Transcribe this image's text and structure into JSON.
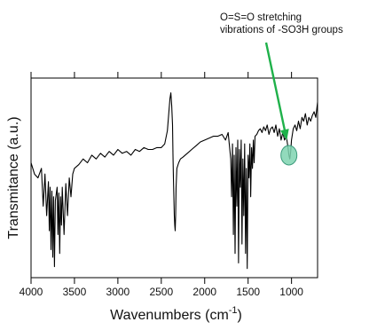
{
  "chart_data": {
    "type": "line",
    "title": "",
    "xlabel": "Wavenumbers (cm",
    "xlabel_unit_sup": "-1",
    "xlabel_close": ")",
    "ylabel": "Transmitance (a.u.)",
    "x_reversed": true,
    "xlim": [
      4000,
      700
    ],
    "ylim": [
      0,
      1
    ],
    "x_ticks": [
      4000,
      3500,
      3000,
      2500,
      2000,
      1500,
      1000
    ],
    "y_ticks_labeled": false,
    "grid": false,
    "series": [
      {
        "color": "#000000",
        "x": [
          4000,
          3960,
          3920,
          3880,
          3860,
          3840,
          3820,
          3800,
          3790,
          3780,
          3770,
          3760,
          3750,
          3740,
          3730,
          3720,
          3700,
          3690,
          3680,
          3670,
          3660,
          3650,
          3640,
          3620,
          3600,
          3580,
          3560,
          3540,
          3520,
          3500,
          3450,
          3400,
          3350,
          3300,
          3250,
          3200,
          3150,
          3100,
          3050,
          3000,
          2950,
          2900,
          2850,
          2800,
          2750,
          2700,
          2650,
          2600,
          2550,
          2500,
          2460,
          2430,
          2400,
          2390,
          2380,
          2370,
          2365,
          2360,
          2355,
          2350,
          2345,
          2340,
          2335,
          2330,
          2320,
          2300,
          2280,
          2250,
          2200,
          2150,
          2100,
          2050,
          2000,
          1950,
          1900,
          1850,
          1800,
          1760,
          1730,
          1700,
          1690,
          1680,
          1670,
          1660,
          1650,
          1640,
          1630,
          1620,
          1610,
          1600,
          1590,
          1580,
          1570,
          1560,
          1550,
          1540,
          1530,
          1520,
          1510,
          1500,
          1490,
          1480,
          1470,
          1460,
          1450,
          1440,
          1430,
          1420,
          1400,
          1380,
          1360,
          1340,
          1320,
          1300,
          1280,
          1260,
          1240,
          1220,
          1200,
          1180,
          1160,
          1140,
          1120,
          1100,
          1080,
          1060,
          1040,
          1030,
          1020,
          1010,
          1000,
          980,
          960,
          940,
          920,
          900,
          880,
          860,
          840,
          820,
          800,
          780,
          760,
          740,
          720,
          700
        ],
        "y": [
          0.58,
          0.52,
          0.5,
          0.55,
          0.35,
          0.52,
          0.3,
          0.48,
          0.22,
          0.45,
          0.12,
          0.43,
          0.08,
          0.4,
          0.03,
          0.38,
          0.45,
          0.2,
          0.42,
          0.1,
          0.4,
          0.25,
          0.45,
          0.2,
          0.47,
          0.3,
          0.5,
          0.4,
          0.52,
          0.55,
          0.57,
          0.6,
          0.58,
          0.62,
          0.6,
          0.63,
          0.61,
          0.64,
          0.62,
          0.65,
          0.63,
          0.64,
          0.62,
          0.65,
          0.64,
          0.66,
          0.65,
          0.65,
          0.66,
          0.66,
          0.68,
          0.75,
          0.92,
          0.95,
          0.88,
          0.78,
          0.62,
          0.5,
          0.4,
          0.3,
          0.25,
          0.22,
          0.3,
          0.45,
          0.55,
          0.58,
          0.6,
          0.61,
          0.63,
          0.65,
          0.67,
          0.69,
          0.7,
          0.71,
          0.72,
          0.72,
          0.73,
          0.7,
          0.74,
          0.6,
          0.4,
          0.68,
          0.2,
          0.62,
          0.1,
          0.66,
          0.35,
          0.7,
          0.05,
          0.65,
          0.45,
          0.7,
          0.15,
          0.6,
          0.3,
          0.68,
          0.1,
          0.55,
          0.02,
          0.62,
          0.5,
          0.68,
          0.4,
          0.66,
          0.55,
          0.7,
          0.58,
          0.72,
          0.73,
          0.75,
          0.76,
          0.74,
          0.77,
          0.75,
          0.78,
          0.73,
          0.76,
          0.77,
          0.74,
          0.78,
          0.72,
          0.76,
          0.7,
          0.74,
          0.7,
          0.72,
          0.66,
          0.62,
          0.6,
          0.64,
          0.7,
          0.76,
          0.78,
          0.75,
          0.8,
          0.76,
          0.82,
          0.8,
          0.84,
          0.78,
          0.82,
          0.8,
          0.83,
          0.85,
          0.82,
          0.9
        ]
      }
    ],
    "annotation": {
      "lines": [
        "O=S=O stretching",
        "vibrations of -SO3H groups"
      ],
      "target_x": 1030,
      "target_y": 0.62,
      "arrow_color": "#1fb14a",
      "marker_color": "#7fd3b0"
    }
  }
}
